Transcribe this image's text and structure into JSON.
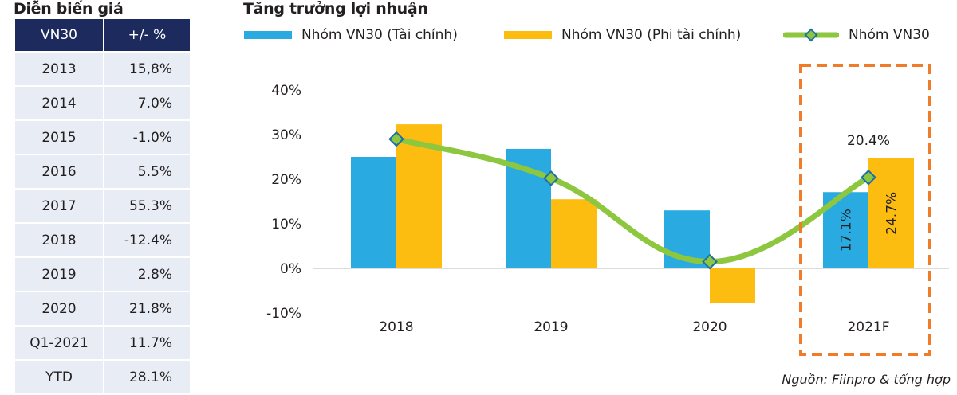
{
  "price_table": {
    "title": "Diễn biến giá",
    "headers": [
      "VN30",
      "+/- %"
    ],
    "rows": [
      {
        "year": "2013",
        "change": "15,8%"
      },
      {
        "year": "2014",
        "change": "7.0%"
      },
      {
        "year": "2015",
        "change": "-1.0%"
      },
      {
        "year": "2016",
        "change": "5.5%"
      },
      {
        "year": "2017",
        "change": "55.3%"
      },
      {
        "year": "2018",
        "change": "-12.4%"
      },
      {
        "year": "2019",
        "change": "2.8%"
      },
      {
        "year": "2020",
        "change": "21.8%"
      },
      {
        "year": "Q1-2021",
        "change": "11.7%"
      },
      {
        "year": "YTD",
        "change": "28.1%"
      }
    ],
    "header_color": "#1d2a5d",
    "row_color": "#e8ecf4"
  },
  "chart_data": {
    "type": "bar",
    "title": "Tăng trưởng lợi nhuận",
    "xlabel": "",
    "ylabel": "",
    "categories": [
      "2018",
      "2019",
      "2020",
      "2021F"
    ],
    "ylim": [
      -10,
      40
    ],
    "yticks": [
      40,
      30,
      20,
      10,
      0,
      -10
    ],
    "ytick_labels": [
      "40%",
      "30%",
      "20%",
      "10%",
      "0%",
      "-10%"
    ],
    "grid": false,
    "legend_position": "top",
    "series": [
      {
        "name": "Nhóm VN30 (Tài chính)",
        "kind": "bar",
        "color": "#29abe2",
        "values": [
          25.0,
          26.8,
          13.0,
          17.1
        ]
      },
      {
        "name": "Nhóm VN30 (Phi tài chính)",
        "kind": "bar",
        "color": "#fdbd10",
        "values": [
          32.3,
          15.5,
          -7.8,
          24.7
        ]
      },
      {
        "name": "Nhóm VN30",
        "kind": "line",
        "color": "#8dc63f",
        "marker_color": "#1d6fa5",
        "values": [
          29.0,
          20.2,
          1.5,
          20.4
        ]
      }
    ],
    "data_labels": [
      {
        "series": "Nhóm VN30 (Tài chính)",
        "category": "2021F",
        "text": "17.1%",
        "rotated": true
      },
      {
        "series": "Nhóm VN30 (Phi tài chính)",
        "category": "2021F",
        "text": "24.7%",
        "rotated": true
      },
      {
        "series": "Nhóm VN30",
        "category": "2021F",
        "text": "20.4%",
        "rotated": false
      }
    ],
    "highlight": {
      "category": "2021F",
      "style": "dashed box",
      "color": "#f07c2a"
    }
  },
  "source_note": "Nguồn: Fiinpro & tổng hợp"
}
